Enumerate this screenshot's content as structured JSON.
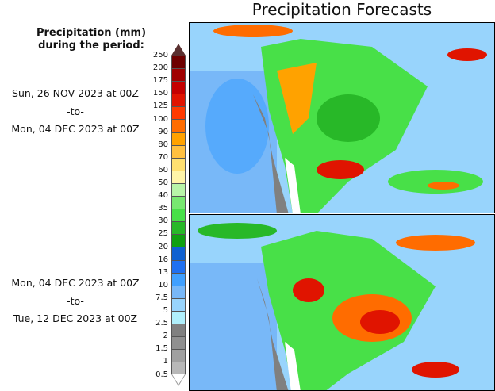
{
  "title": "Precipitation Forecasts",
  "legend": {
    "header_line1": "Precipitation (mm)",
    "header_line2": "during the period:",
    "ticks": [
      "250",
      "200",
      "175",
      "150",
      "125",
      "100",
      "90",
      "80",
      "70",
      "60",
      "50",
      "40",
      "35",
      "30",
      "25",
      "20",
      "16",
      "13",
      "10",
      "7.5",
      "5",
      "2.5",
      "2",
      "1.5",
      "1",
      "0.5"
    ],
    "colors": [
      "#6e0000",
      "#a00000",
      "#c40000",
      "#e01400",
      "#ff3a00",
      "#ff6c00",
      "#ffa200",
      "#ffc040",
      "#ffe070",
      "#fff5a8",
      "#b8f5a8",
      "#78e870",
      "#48e048",
      "#28b828",
      "#10a010",
      "#1060d0",
      "#2070f0",
      "#40a0ff",
      "#78b8f8",
      "#98d4fc",
      "#b0f0fc",
      "#808080",
      "#909090",
      "#a0a0a0",
      "#b8b8b8"
    ],
    "over_color": "#5a3030",
    "under_color": "#ffffff"
  },
  "period1": {
    "start": "Sun, 26 NOV 2023 at 00Z",
    "sep": "-to-",
    "end": "Mon, 04 DEC 2023 at 00Z"
  },
  "period2": {
    "start": "Mon, 04 DEC 2023 at 00Z",
    "sep": "-to-",
    "end": "Tue, 12 DEC 2023 at 00Z"
  }
}
